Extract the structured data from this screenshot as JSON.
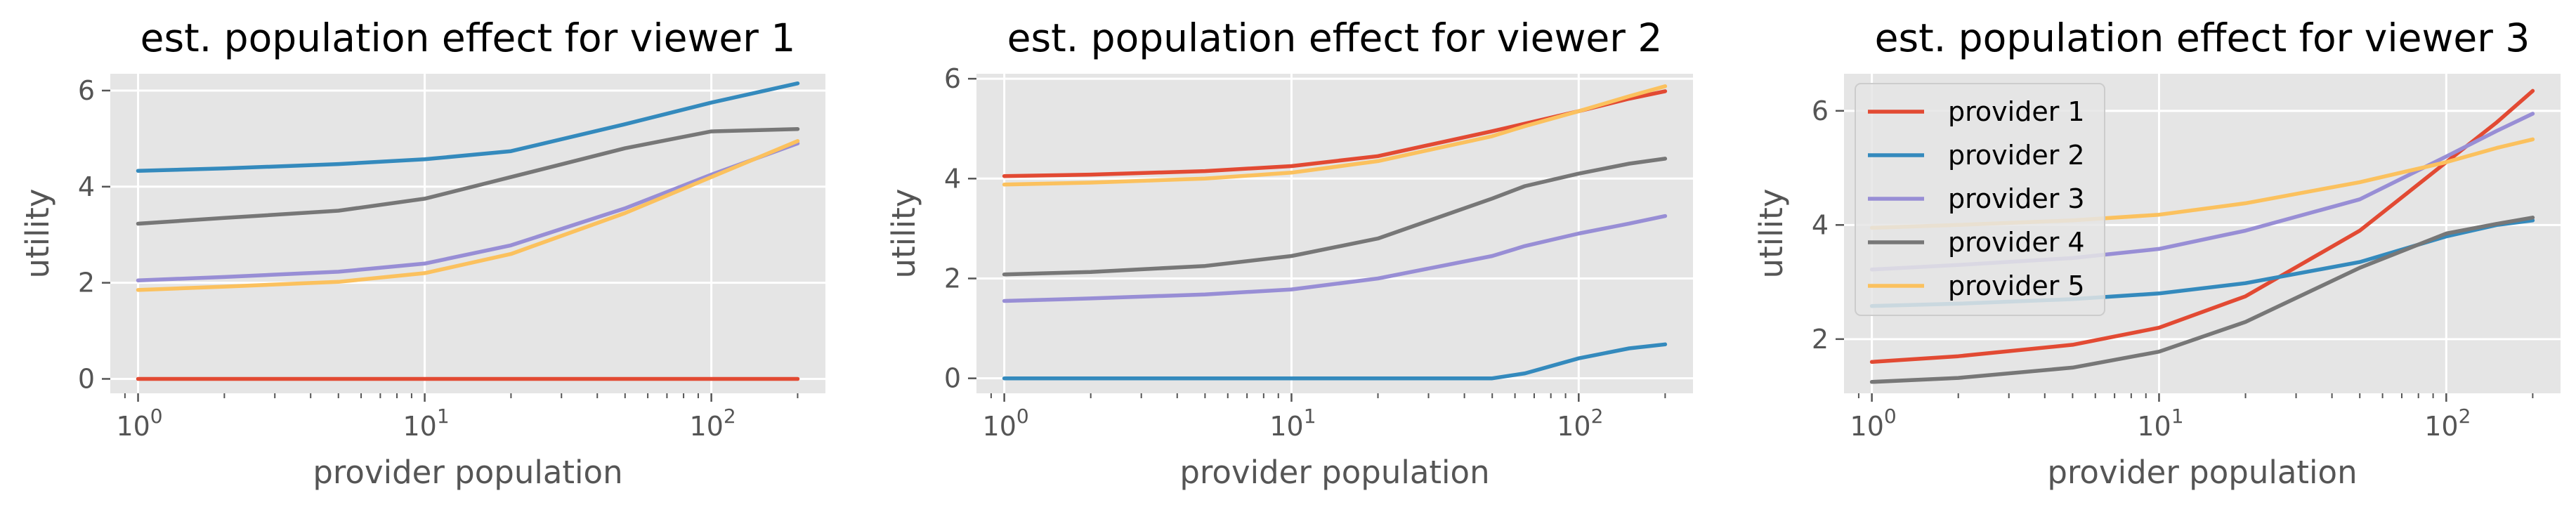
{
  "colors": {
    "provider 1": "#E24A33",
    "provider 2": "#348ABD",
    "provider 3": "#988ED5",
    "provider 4": "#777777",
    "provider 5": "#FBC15E",
    "panel_bg": "#E5E5E5",
    "grid": "#FFFFFF",
    "tick_text": "#555555"
  },
  "chart_data": [
    {
      "type": "line",
      "title": "est. population effect for viewer 1",
      "xlabel": "provider population",
      "ylabel": "utility",
      "xscale": "log",
      "xlim": [
        0.8,
        250
      ],
      "ylim": [
        -0.3,
        6.35
      ],
      "x_ticks": [
        {
          "value": 1,
          "exp": "0"
        },
        {
          "value": 10,
          "exp": "1"
        },
        {
          "value": 100,
          "exp": "2"
        }
      ],
      "y_ticks": [
        0,
        2,
        4,
        6
      ],
      "grid": true,
      "legend": null,
      "x": [
        1,
        2,
        5,
        10,
        20,
        50,
        100,
        200
      ],
      "series": [
        {
          "name": "provider 1",
          "values": [
            0.0,
            0.0,
            0.0,
            0.0,
            0.0,
            0.0,
            0.0,
            0.0
          ]
        },
        {
          "name": "provider 2",
          "values": [
            4.33,
            4.38,
            4.47,
            4.57,
            4.74,
            5.3,
            5.75,
            6.15
          ]
        },
        {
          "name": "provider 3",
          "values": [
            2.05,
            2.12,
            2.23,
            2.4,
            2.78,
            3.55,
            4.25,
            4.9
          ]
        },
        {
          "name": "provider 4",
          "values": [
            3.23,
            3.35,
            3.5,
            3.75,
            4.2,
            4.8,
            5.15,
            5.2
          ]
        },
        {
          "name": "provider 5",
          "values": [
            1.85,
            1.92,
            2.02,
            2.2,
            2.6,
            3.45,
            4.2,
            4.95
          ]
        }
      ]
    },
    {
      "type": "line",
      "title": "est. population effect for viewer 2",
      "xlabel": "provider population",
      "ylabel": "utility",
      "xscale": "log",
      "xlim": [
        0.8,
        250
      ],
      "ylim": [
        -0.3,
        6.1
      ],
      "x_ticks": [
        {
          "value": 1,
          "exp": "0"
        },
        {
          "value": 10,
          "exp": "1"
        },
        {
          "value": 100,
          "exp": "2"
        }
      ],
      "y_ticks": [
        0,
        2,
        4,
        6
      ],
      "grid": true,
      "legend": null,
      "x": [
        1,
        2,
        5,
        10,
        20,
        50,
        65,
        100,
        150,
        200
      ],
      "series": [
        {
          "name": "provider 1",
          "values": [
            4.05,
            4.08,
            4.15,
            4.25,
            4.45,
            4.95,
            5.1,
            5.35,
            5.6,
            5.75
          ]
        },
        {
          "name": "provider 2",
          "values": [
            0.0,
            0.0,
            0.0,
            0.0,
            0.0,
            0.0,
            0.1,
            0.4,
            0.6,
            0.68
          ]
        },
        {
          "name": "provider 3",
          "values": [
            1.55,
            1.6,
            1.68,
            1.78,
            2.0,
            2.45,
            2.65,
            2.9,
            3.1,
            3.25
          ]
        },
        {
          "name": "provider 4",
          "values": [
            2.08,
            2.13,
            2.25,
            2.45,
            2.8,
            3.6,
            3.85,
            4.1,
            4.3,
            4.4
          ]
        },
        {
          "name": "provider 5",
          "values": [
            3.88,
            3.92,
            4.0,
            4.12,
            4.35,
            4.85,
            5.05,
            5.35,
            5.65,
            5.85
          ]
        }
      ]
    },
    {
      "type": "line",
      "title": "est. population effect for viewer 3",
      "xlabel": "provider population",
      "ylabel": "utility",
      "xscale": "log",
      "xlim": [
        0.8,
        250
      ],
      "ylim": [
        1.05,
        6.65
      ],
      "x_ticks": [
        {
          "value": 1,
          "exp": "0"
        },
        {
          "value": 10,
          "exp": "1"
        },
        {
          "value": 100,
          "exp": "2"
        }
      ],
      "y_ticks": [
        2,
        4,
        6
      ],
      "grid": true,
      "legend": "upper left",
      "x": [
        1,
        2,
        5,
        10,
        20,
        50,
        100,
        150,
        200
      ],
      "series": [
        {
          "name": "provider 1",
          "values": [
            1.6,
            1.7,
            1.9,
            2.2,
            2.75,
            3.9,
            5.1,
            5.8,
            6.35
          ]
        },
        {
          "name": "provider 2",
          "values": [
            2.58,
            2.62,
            2.7,
            2.8,
            2.98,
            3.35,
            3.8,
            4.0,
            4.08
          ]
        },
        {
          "name": "provider 3",
          "values": [
            3.22,
            3.3,
            3.42,
            3.58,
            3.9,
            4.45,
            5.2,
            5.65,
            5.95
          ]
        },
        {
          "name": "provider 4",
          "values": [
            1.25,
            1.32,
            1.5,
            1.78,
            2.3,
            3.25,
            3.85,
            4.02,
            4.13
          ]
        },
        {
          "name": "provider 5",
          "values": [
            3.95,
            4.0,
            4.08,
            4.18,
            4.38,
            4.75,
            5.1,
            5.35,
            5.5
          ]
        }
      ]
    }
  ]
}
